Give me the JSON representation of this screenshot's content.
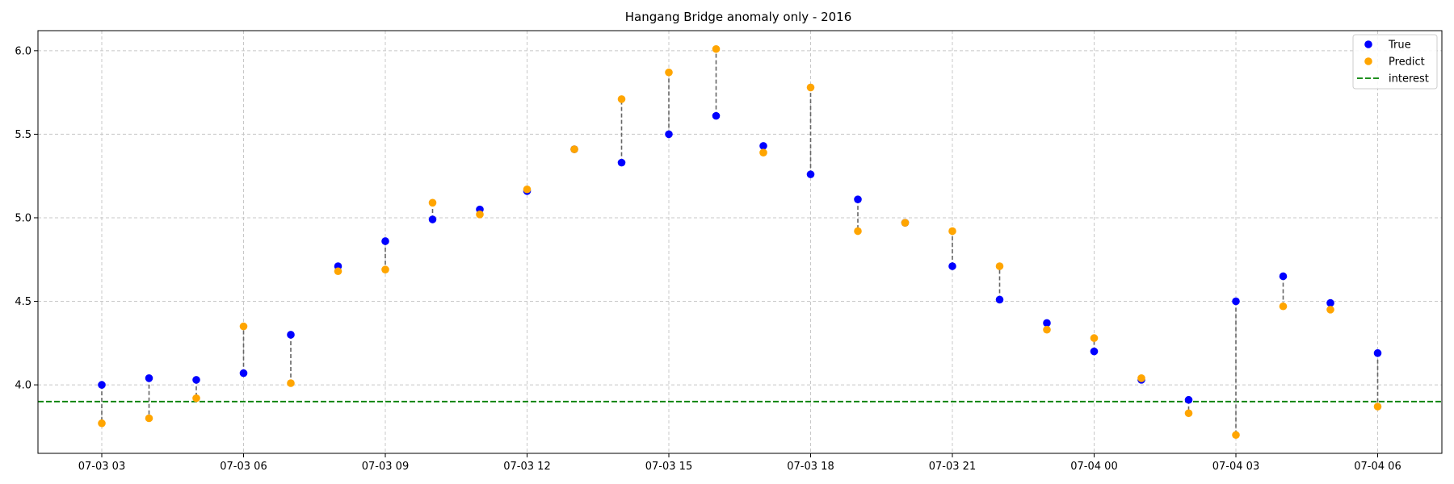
{
  "chart_data": {
    "type": "scatter",
    "title": "Hangang Bridge anomaly only - 2016",
    "xlabel": "",
    "ylabel": "",
    "ylim": [
      3.59,
      6.12
    ],
    "x_tick_labels": [
      "07-03 03",
      "07-03 06",
      "07-03 09",
      "07-03 12",
      "07-03 15",
      "07-03 18",
      "07-03 21",
      "07-04 00",
      "07-04 03",
      "07-04 06"
    ],
    "y_tick_labels": [
      "4.0",
      "4.5",
      "5.0",
      "5.5",
      "6.0"
    ],
    "x": [
      "07-03 03:00",
      "07-03 04:00",
      "07-03 05:00",
      "07-03 06:00",
      "07-03 07:00",
      "07-03 08:00",
      "07-03 09:00",
      "07-03 10:00",
      "07-03 11:00",
      "07-03 12:00",
      "07-03 13:00",
      "07-03 14:00",
      "07-03 15:00",
      "07-03 16:00",
      "07-03 17:00",
      "07-03 18:00",
      "07-03 19:00",
      "07-03 20:00",
      "07-03 21:00",
      "07-03 22:00",
      "07-03 23:00",
      "07-04 00:00",
      "07-04 01:00",
      "07-04 02:00",
      "07-04 03:00",
      "07-04 04:00",
      "07-04 05:00",
      "07-04 06:00"
    ],
    "series": [
      {
        "name": "True",
        "color": "#0000ff",
        "values": [
          4.0,
          4.04,
          4.03,
          4.07,
          4.3,
          4.71,
          4.86,
          4.99,
          5.05,
          5.16,
          5.41,
          5.33,
          5.5,
          5.61,
          5.43,
          5.26,
          5.11,
          4.97,
          4.71,
          4.51,
          4.37,
          4.2,
          4.03,
          3.91,
          4.5,
          4.65,
          4.49,
          4.19
        ]
      },
      {
        "name": "Predict",
        "color": "#ffa500",
        "values": [
          3.77,
          3.8,
          3.92,
          4.35,
          4.01,
          4.68,
          4.69,
          5.09,
          5.02,
          5.17,
          5.41,
          5.71,
          5.87,
          6.01,
          5.39,
          5.78,
          4.92,
          4.97,
          4.92,
          4.71,
          4.33,
          4.28,
          4.04,
          3.83,
          3.7,
          4.47,
          4.45,
          3.87
        ]
      }
    ],
    "reference_line": {
      "name": "interest",
      "value": 3.9,
      "color": "#008000",
      "style": "dashed"
    },
    "connector_color": "#666666",
    "grid": true,
    "legend_position": "top-right",
    "legend": [
      {
        "label": "True",
        "color": "#0000ff",
        "marker": "dot"
      },
      {
        "label": "Predict",
        "color": "#ffa500",
        "marker": "dot"
      },
      {
        "label": "interest",
        "color": "#008000",
        "marker": "dashed-line"
      }
    ]
  }
}
